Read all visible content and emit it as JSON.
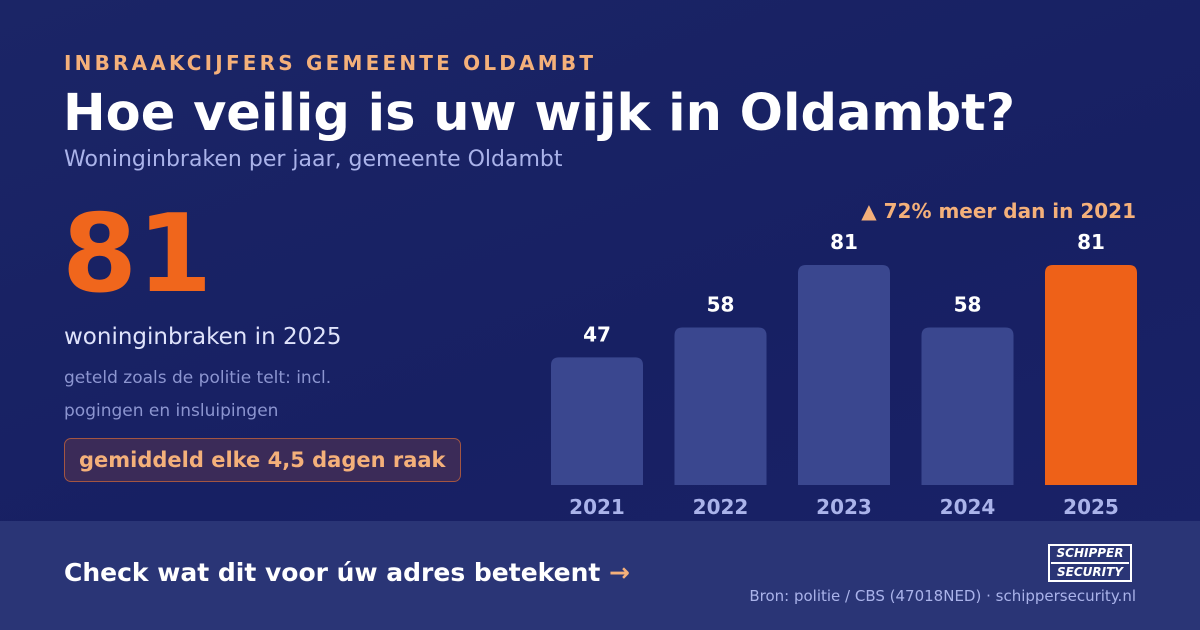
{
  "header": {
    "eyebrow": "INBRAAKCIJFERS GEMEENTE OLDAMBT",
    "title": "Hoe veilig is uw wijk in Oldambt?",
    "subtitle": "Woninginbraken per jaar, gemeente Oldambt"
  },
  "highlight": {
    "number": "81",
    "label": "woninginbraken in 2025",
    "note": "geteld zoals de politie telt: incl. pogingen en insluipingen",
    "badge": "gemiddeld elke 4,5 dagen raak"
  },
  "chart_note": "▲ 72% meer dan in 2021",
  "chart_data": {
    "type": "bar",
    "categories": [
      "2021",
      "2022",
      "2023",
      "2024",
      "2025"
    ],
    "values": [
      47,
      58,
      81,
      58,
      81
    ],
    "value_labels": [
      "47",
      "58",
      "81",
      "58",
      "81"
    ],
    "highlight_index": 4,
    "ylim": [
      0,
      81
    ],
    "grid": false,
    "colors": {
      "bar": "#3a478f",
      "highlight": "#ee6118",
      "value_label": "#ffffff",
      "tick_label": "#aab3ea"
    }
  },
  "footer": {
    "cta": "Check wat dit voor úw adres betekent",
    "cta_arrow": "→",
    "source": "Bron: politie / CBS (47018NED) · schippersecurity.nl",
    "logo_top": "SCHIPPER",
    "logo_bottom": "SECURITY"
  },
  "colors": {
    "background": "#1a2366",
    "accent": "#f0661c",
    "accent_light": "#f4b07a",
    "footer_band": "#2a3576"
  }
}
